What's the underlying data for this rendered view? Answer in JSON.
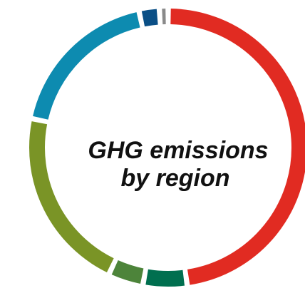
{
  "chart_data": {
    "type": "pie",
    "style": "donut",
    "center_title": [
      "GHG emissions",
      "by region"
    ],
    "legend": "none",
    "segments": [
      {
        "label": "",
        "value": 47.0,
        "color": "#e12b22"
      },
      {
        "label": "",
        "value": 5.0,
        "color": "#006f4f"
      },
      {
        "label": "",
        "value": 4.0,
        "color": "#4d843a"
      },
      {
        "label": "",
        "value": 21.0,
        "color": "#7a9426"
      },
      {
        "label": "",
        "value": 18.0,
        "color": "#0d8bb0"
      },
      {
        "label": "",
        "value": 2.3,
        "color": "#0a4f86"
      },
      {
        "label": "",
        "value": 1.0,
        "color": "#8a8a8a"
      }
    ]
  }
}
